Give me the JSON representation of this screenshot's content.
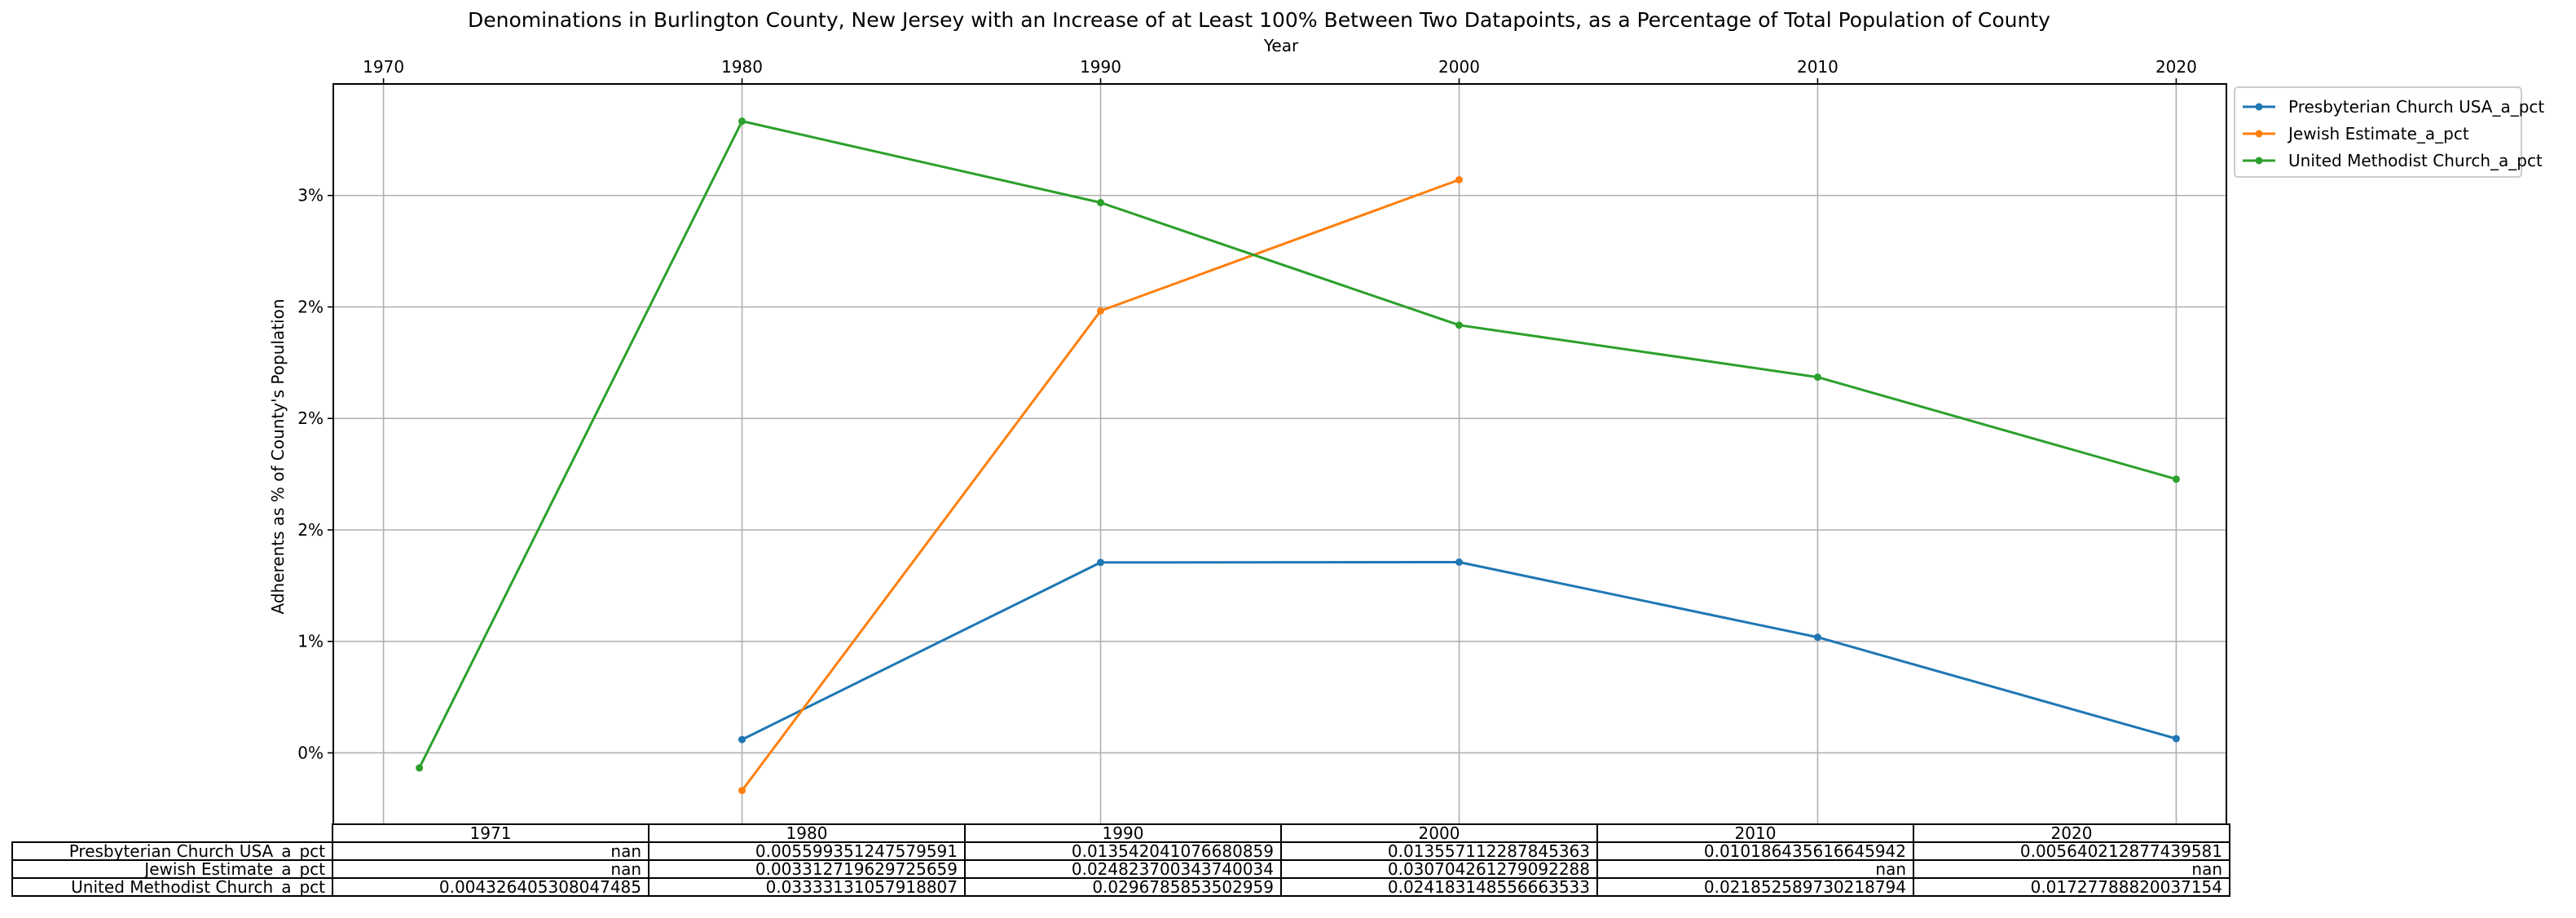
{
  "chart_data": {
    "type": "line",
    "title": "Denominations in Burlington County, New Jersey with an Increase of at Least 100% Between Two Datapoints, as a Percentage of Total Population of County",
    "xlabel": "Year",
    "ylabel": "Adherents as % of County's Population",
    "x_ticks": [
      "1970",
      "1980",
      "1990",
      "2000",
      "2010",
      "2020"
    ],
    "y_ticks": [
      {
        "value": 0.005,
        "label": "0%"
      },
      {
        "value": 0.01,
        "label": "1%"
      },
      {
        "value": 0.015,
        "label": "2%"
      },
      {
        "value": 0.02,
        "label": "2%"
      },
      {
        "value": 0.025,
        "label": "2%"
      },
      {
        "value": 0.03,
        "label": "3%"
      }
    ],
    "xlim": [
      1968.6,
      2021.4
    ],
    "ylim": [
      0.0018,
      0.035
    ],
    "grid": true,
    "x_axis_position": "top",
    "legend_position": "outside top-right",
    "series": [
      {
        "name": "Presbyterian Church USA_a_pct",
        "color": "#1f77b4",
        "x": [
          1980,
          1990,
          2000,
          2010,
          2020
        ],
        "values": [
          0.005599351247579591,
          0.013542041076680859,
          0.013557112287845363,
          0.010186435616645942,
          0.005640212877439581
        ]
      },
      {
        "name": "Jewish Estimate_a_pct",
        "color": "#ff7f0e",
        "x": [
          1980,
          1990,
          2000
        ],
        "values": [
          0.003312719629725659,
          0.024823700343740034,
          0.030704261279092288
        ]
      },
      {
        "name": "United Methodist Church_a_pct",
        "color": "#2ca02c",
        "x": [
          1971,
          1980,
          1990,
          2000,
          2010,
          2020
        ],
        "values": [
          0.004326405308047485,
          0.03333131057918807,
          0.0296785853502959,
          0.024183148556663533,
          0.021852589730218794,
          0.01727788820037154
        ]
      }
    ],
    "table": {
      "columns": [
        "1971",
        "1980",
        "1990",
        "2000",
        "2010",
        "2020"
      ],
      "rows": [
        {
          "label": "Presbyterian Church USA_a_pct",
          "cells": [
            "nan",
            "0.005599351247579591",
            "0.013542041076680859",
            "0.013557112287845363",
            "0.010186435616645942",
            "0.005640212877439581"
          ]
        },
        {
          "label": "Jewish Estimate_a_pct",
          "cells": [
            "nan",
            "0.003312719629725659",
            "0.024823700343740034",
            "0.030704261279092288",
            "nan",
            "nan"
          ]
        },
        {
          "label": "United Methodist Church_a_pct",
          "cells": [
            "0.004326405308047485",
            "0.03333131057918807",
            "0.0296785853502959",
            "0.024183148556663533",
            "0.021852589730218794",
            "0.01727788820037154"
          ]
        }
      ]
    }
  }
}
